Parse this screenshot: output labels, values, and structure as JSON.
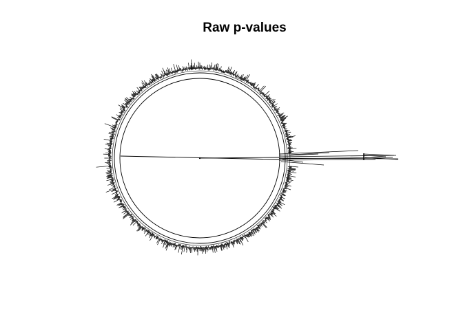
{
  "title": "Raw p-values",
  "tree": {
    "type": "circular phylogenetic tree",
    "edge_color": "#000000",
    "highlight_color": "#ff0000",
    "highlighted_tips": [
      "",
      "",
      "",
      ""
    ]
  }
}
